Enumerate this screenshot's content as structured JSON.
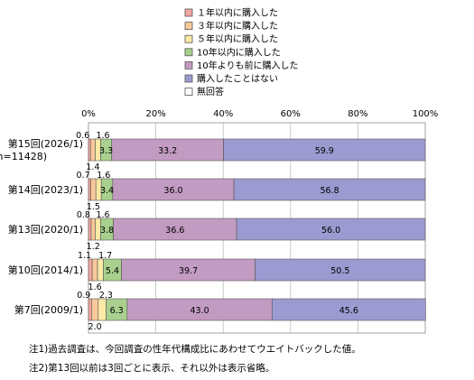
{
  "chart_data": {
    "type": "bar",
    "orientation": "horizontal",
    "stacked": true,
    "percent_axis": true,
    "xlim": [
      0,
      100
    ],
    "x_ticks": [
      "0%",
      "20%",
      "40%",
      "60%",
      "80%",
      "100%"
    ],
    "categories": [
      [
        "第15回(2026/1)",
        "(n=11428)"
      ],
      [
        "第14回(2023/1)"
      ],
      [
        "第13回(2020/1)"
      ],
      [
        "第10回(2014/1)"
      ],
      [
        "第7回(2009/1)"
      ]
    ],
    "series": [
      {
        "name": "１年以内に購入した",
        "color": "#F4A7A0",
        "values": [
          0.6,
          0.7,
          0.8,
          1.1,
          0.9
        ]
      },
      {
        "name": "３年以内に購入した",
        "color": "#F9C89B",
        "values": [
          1.4,
          1.5,
          1.2,
          1.6,
          2.0
        ]
      },
      {
        "name": "５年以内に購入した",
        "color": "#FBE9A5",
        "values": [
          1.6,
          1.6,
          1.6,
          1.7,
          2.3
        ]
      },
      {
        "name": "10年以内に購入した",
        "color": "#A9D08E",
        "values": [
          3.3,
          3.4,
          3.8,
          5.4,
          6.3
        ]
      },
      {
        "name": "10年よりも前に購入した",
        "color": "#C29BC2",
        "values": [
          33.2,
          36.0,
          36.6,
          39.7,
          43.0
        ]
      },
      {
        "name": "購入したことはない",
        "color": "#9B9BD1",
        "values": [
          59.9,
          56.8,
          56.0,
          50.5,
          45.6
        ]
      },
      {
        "name": "無回答",
        "color": "#FFFFFF",
        "values": [
          0,
          0,
          0,
          0,
          0
        ]
      }
    ],
    "grid": true,
    "legend_position": "top"
  },
  "notes": [
    "注1)過去調査は、今回調査の性年代構成比にあわせてウエイトバックした値。",
    "注2)第13回以前は3回ごとに表示、それ以外は表示省略。"
  ]
}
